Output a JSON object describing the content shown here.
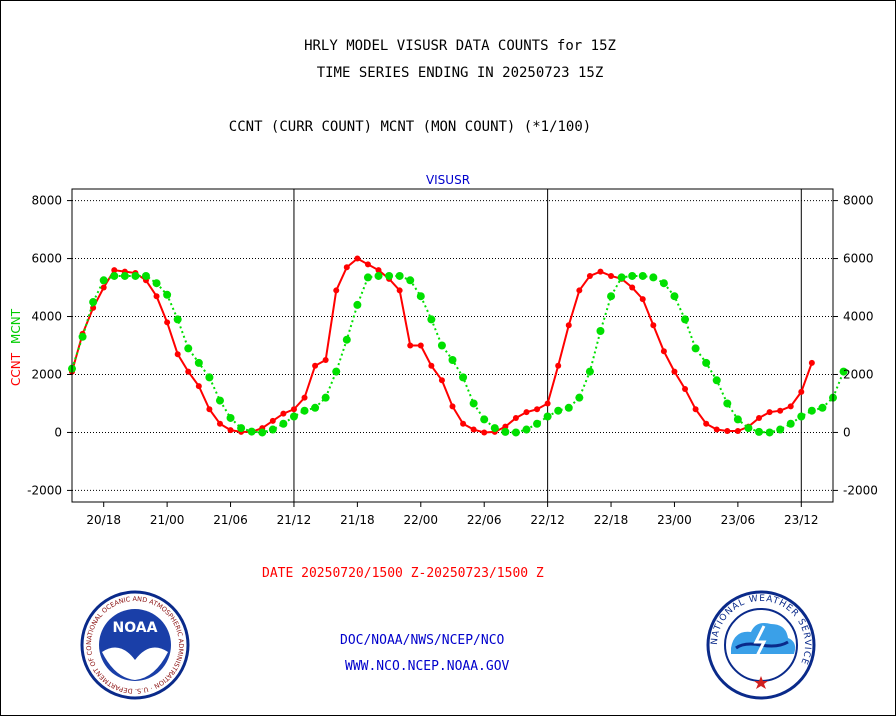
{
  "header": {
    "line1": "HRLY MODEL VISUSR DATA COUNTS for 15Z",
    "line2": "TIME SERIES ENDING IN 20250723 15Z",
    "line3": "CCNT (CURR COUNT) MCNT (MON COUNT) (*1/100)"
  },
  "footer": {
    "date_range": "DATE 20250720/1500 Z-20250723/1500 Z",
    "org_path": "DOC/NOAA/NWS/NCEP/NCO",
    "org_url": "WWW.NCO.NCEP.NOAA.GOV"
  },
  "logos": {
    "noaa_text": "NOAA",
    "noaa_ring": "NATIONAL OCEANIC AND ATMOSPHERIC ADMINISTRATION · U.S. DEPARTMENT OF COMMERCE ·",
    "nws_ring": "NATIONAL WEATHER SERVICE"
  },
  "chart_data": {
    "type": "line",
    "title": "VISUSR",
    "ylabel_parts": [
      "CCNT",
      "MCNT"
    ],
    "ylim": [
      -2400,
      8400
    ],
    "yticks": [
      -2000,
      0,
      2000,
      4000,
      6000,
      8000
    ],
    "x_hours_range": [
      0,
      72
    ],
    "xticks": [
      {
        "hour": 3,
        "label": "20/18"
      },
      {
        "hour": 9,
        "label": "21/00"
      },
      {
        "hour": 15,
        "label": "21/06"
      },
      {
        "hour": 21,
        "label": "21/12"
      },
      {
        "hour": 27,
        "label": "21/18"
      },
      {
        "hour": 33,
        "label": "22/00"
      },
      {
        "hour": 39,
        "label": "22/06"
      },
      {
        "hour": 45,
        "label": "22/12"
      },
      {
        "hour": 51,
        "label": "22/18"
      },
      {
        "hour": 57,
        "label": "23/00"
      },
      {
        "hour": 63,
        "label": "23/06"
      },
      {
        "hour": 69,
        "label": "23/12"
      }
    ],
    "day_boundaries_hours": [
      21,
      45,
      69
    ],
    "grid": true,
    "colors": {
      "ccnt": "#ff0000",
      "mcnt": "#00e000",
      "grid": "#000000",
      "title": "#0000cc"
    },
    "series": [
      {
        "name": "CCNT",
        "values": [
          2100,
          3400,
          4300,
          5000,
          5600,
          5550,
          5500,
          5250,
          4700,
          3800,
          2700,
          2100,
          1600,
          800,
          300,
          80,
          20,
          20,
          150,
          400,
          650,
          800,
          1200,
          2300,
          2500,
          4900,
          5700,
          6000,
          5800,
          5600,
          5300,
          4900,
          3000,
          3000,
          2300,
          1800,
          900,
          300,
          100,
          0,
          20,
          200,
          500,
          700,
          800,
          1000,
          2300,
          3700,
          4900,
          5400,
          5550,
          5400,
          5300,
          5000,
          4600,
          3700,
          2800,
          2100,
          1500,
          800,
          300,
          100,
          50,
          50,
          200,
          500,
          700,
          750,
          900,
          1400,
          2400
        ]
      },
      {
        "name": "MCNT",
        "values": [
          2200,
          3300,
          4500,
          5250,
          5400,
          5400,
          5400,
          5400,
          5150,
          4750,
          3900,
          2900,
          2400,
          1900,
          1100,
          500,
          150,
          30,
          0,
          100,
          300,
          550,
          750,
          850,
          1200,
          2100,
          3200,
          4400,
          5350,
          5400,
          5400,
          5400,
          5250,
          4700,
          3900,
          3000,
          2500,
          1900,
          1000,
          450,
          150,
          20,
          0,
          100,
          300,
          550,
          750,
          850,
          1200,
          2100,
          3500,
          4700,
          5350,
          5400,
          5400,
          5350,
          5150,
          4700,
          3900,
          2900,
          2400,
          1800,
          1000,
          450,
          150,
          20,
          0,
          100,
          300,
          550,
          750,
          850,
          1200,
          2100
        ]
      }
    ]
  }
}
